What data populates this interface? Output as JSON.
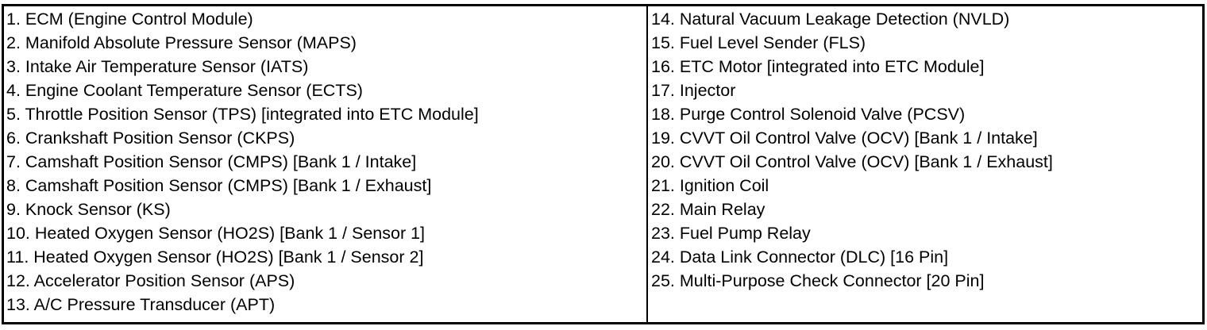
{
  "left_column": [
    "1. ECM (Engine Control Module)",
    "2. Manifold Absolute Pressure Sensor (MAPS)",
    "3. Intake Air Temperature Sensor (IATS)",
    "4. Engine Coolant Temperature Sensor (ECTS)",
    "5. Throttle Position Sensor (TPS) [integrated into ETC Module]",
    "6. Crankshaft Position Sensor (CKPS)",
    "7. Camshaft Position Sensor (CMPS) [Bank 1 / Intake]",
    "8. Camshaft Position Sensor (CMPS) [Bank 1 / Exhaust]",
    "9. Knock Sensor (KS)",
    "10. Heated Oxygen Sensor (HO2S) [Bank 1 / Sensor 1]",
    "11. Heated Oxygen Sensor (HO2S) [Bank 1 / Sensor 2]",
    "12. Accelerator Position Sensor (APS)",
    "13. A/C Pressure Transducer (APT)"
  ],
  "right_column": [
    "14. Natural Vacuum Leakage Detection (NVLD)",
    "15. Fuel Level Sender (FLS)",
    "16. ETC Motor [integrated into ETC Module]",
    "17. Injector",
    "18. Purge Control Solenoid Valve (PCSV)",
    "19. CVVT Oil Control Valve (OCV) [Bank 1 / Intake]",
    "20. CVVT Oil Control Valve (OCV) [Bank 1 / Exhaust]",
    "21. Ignition Coil",
    "22. Main Relay",
    "23. Fuel Pump Relay",
    "24. Data Link Connector (DLC) [16 Pin]",
    "25. Multi-Purpose Check Connector [20 Pin]"
  ]
}
